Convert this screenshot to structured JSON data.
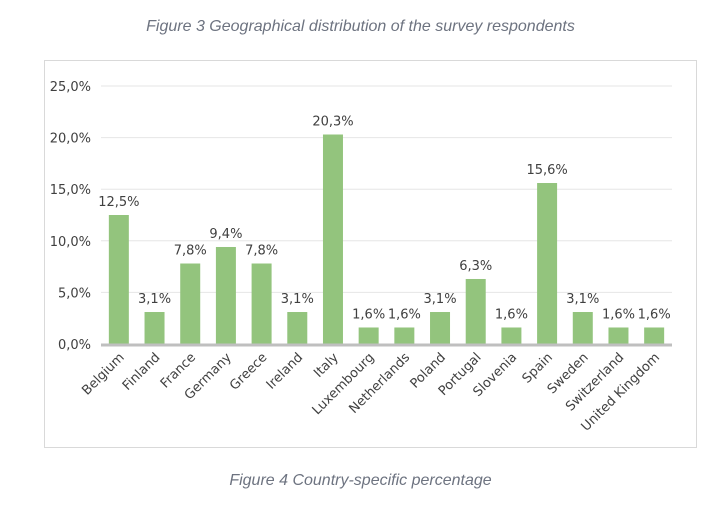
{
  "figure_title": "Figure 3 Geographical distribution of the survey respondents",
  "figure_caption": "Figure 4 Country-specific percentage",
  "colors": {
    "bar": "#93c47d",
    "grid": "#e6e6e6",
    "axis": "#bfbfbf",
    "text": "#404040",
    "title": "#6d7380"
  },
  "chart_data": {
    "type": "bar",
    "title": "",
    "xlabel": "",
    "ylabel": "",
    "ylim": [
      0,
      25
    ],
    "yticks": [
      0,
      5,
      10,
      15,
      20,
      25
    ],
    "ytick_labels": [
      "0,0%",
      "5,0%",
      "10,0%",
      "15,0%",
      "20,0%",
      "25,0%"
    ],
    "grid": true,
    "legend": "none",
    "categories": [
      "Belgium",
      "Finland",
      "France",
      "Germany",
      "Greece",
      "Ireland",
      "Italy",
      "Luxembourg",
      "Netherlands",
      "Poland",
      "Portugal",
      "Slovenia",
      "Spain",
      "Sweden",
      "Switzerland",
      "United Kingdom"
    ],
    "values": [
      12.5,
      3.1,
      7.8,
      9.4,
      7.8,
      3.1,
      20.3,
      1.6,
      1.6,
      3.1,
      6.3,
      1.6,
      15.6,
      3.1,
      1.6,
      1.6
    ],
    "data_labels": [
      "12,5%",
      "3,1%",
      "7,8%",
      "9,4%",
      "7,8%",
      "3,1%",
      "20,3%",
      "1,6%",
      "1,6%",
      "3,1%",
      "6,3%",
      "1,6%",
      "15,6%",
      "3,1%",
      "1,6%",
      "1,6%"
    ]
  }
}
